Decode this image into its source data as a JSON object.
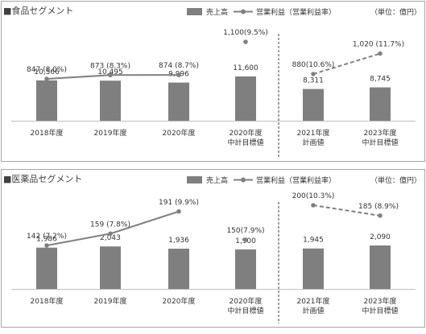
{
  "legend": {
    "bar_label": "売上高",
    "line_label": "営業利益（営業利益率）",
    "unit": "（単位：億円）"
  },
  "colors": {
    "bar": "#7f7f7f",
    "line": "#808080",
    "text": "#333333",
    "frame": "#a6a6a6",
    "axis": "#bfbfbf",
    "divider": "#404040"
  },
  "chart_data": [
    {
      "type": "bar",
      "title": "■食品セグメント",
      "categories": [
        "2018年度",
        "2019年度",
        "2020年度",
        "2020年度\n中計目標値",
        "2021年度\n計画値",
        "2023年度\n中計目標値"
      ],
      "series": [
        {
          "name": "売上高",
          "type": "bar",
          "values": [
            10566,
            10495,
            9996,
            11600,
            8311,
            8745
          ],
          "labels": [
            "10,566",
            "10,495",
            "9,996",
            "11,600",
            "8,311",
            "8,745"
          ]
        },
        {
          "name": "営業利益（営業利益率）",
          "type": "line",
          "values": [
            847,
            873,
            874,
            1100,
            880,
            1020
          ],
          "labels": [
            "847 (8.0%)",
            "873 (8.3%)",
            "874 (8.7%)",
            "1,100(9.5%)",
            "880(10.6%)",
            "1,020 (11.7%)"
          ],
          "margins_pct": [
            8.0,
            8.3,
            8.7,
            9.5,
            10.6,
            11.7
          ],
          "segments": [
            {
              "from": 0,
              "to": 2,
              "style": "solid"
            },
            {
              "from": 4,
              "to": 5,
              "style": "dashed"
            }
          ]
        }
      ]
    },
    {
      "type": "bar",
      "title": "■医薬品セグメント",
      "categories": [
        "2018年度",
        "2019年度",
        "2020年度",
        "2020年度\n中計目標値",
        "2021年度\n計画値",
        "2023年度\n中計目標値"
      ],
      "series": [
        {
          "name": "売上高",
          "type": "bar",
          "values": [
            1986,
            2043,
            1936,
            1900,
            1945,
            2090
          ],
          "labels": [
            "1,986",
            "2,043",
            "1,936",
            "1,900",
            "1,945",
            "2,090"
          ]
        },
        {
          "name": "営業利益（営業利益率）",
          "type": "line",
          "values": [
            142,
            159,
            191,
            150,
            200,
            185
          ],
          "labels": [
            "142 (7.2%)",
            "159 (7.8%)",
            "191 (9.9%)",
            "150(7.9%)",
            "200(10.3%)",
            "185 (8.9%)"
          ],
          "margins_pct": [
            7.2,
            7.8,
            9.9,
            7.9,
            10.3,
            8.9
          ],
          "segments": [
            {
              "from": 0,
              "to": 2,
              "style": "solid"
            },
            {
              "from": 4,
              "to": 5,
              "style": "dashed"
            }
          ]
        }
      ]
    }
  ]
}
